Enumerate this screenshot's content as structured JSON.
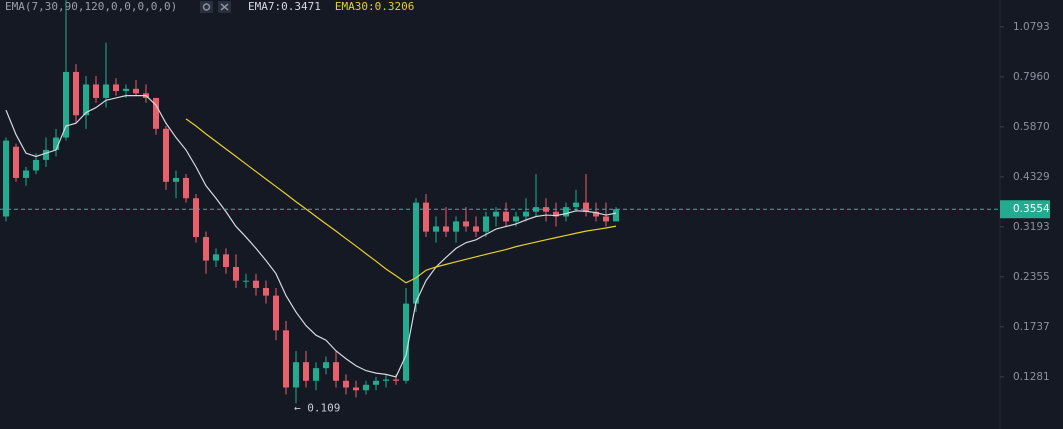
{
  "chart_data": {
    "type": "candlestick",
    "indicator": "EMA(7,30,90,120,0,0,0,0,0)",
    "log_scale": true,
    "up_color": "#22ab8e",
    "down_color": "#e8606c",
    "open": [
      0.34,
      0.52,
      0.43,
      0.45,
      0.48,
      0.51,
      0.55,
      0.82,
      0.63,
      0.76,
      0.7,
      0.76,
      0.73,
      0.74,
      0.72,
      0.7,
      0.58,
      0.42,
      0.43,
      0.38,
      0.3,
      0.26,
      0.27,
      0.25,
      0.23,
      0.23,
      0.22,
      0.21,
      0.17,
      0.12,
      0.14,
      0.125,
      0.135,
      0.14,
      0.125,
      0.12,
      0.118,
      0.122,
      0.125,
      0.126,
      0.125,
      0.2,
      0.37,
      0.31,
      0.32,
      0.31,
      0.33,
      0.32,
      0.31,
      0.34,
      0.35,
      0.33,
      0.34,
      0.35,
      0.36,
      0.35,
      0.34,
      0.36,
      0.37,
      0.35,
      0.34,
      0.33
    ],
    "high": [
      0.55,
      0.53,
      0.46,
      0.5,
      0.55,
      0.58,
      1.27,
      0.86,
      0.8,
      0.8,
      0.98,
      0.79,
      0.76,
      0.78,
      0.76,
      0.7,
      0.59,
      0.45,
      0.44,
      0.39,
      0.31,
      0.28,
      0.28,
      0.27,
      0.24,
      0.24,
      0.23,
      0.22,
      0.18,
      0.15,
      0.15,
      0.14,
      0.145,
      0.15,
      0.13,
      0.125,
      0.125,
      0.128,
      0.13,
      0.13,
      0.22,
      0.38,
      0.39,
      0.34,
      0.36,
      0.34,
      0.36,
      0.34,
      0.35,
      0.36,
      0.37,
      0.35,
      0.38,
      0.44,
      0.38,
      0.37,
      0.37,
      0.4,
      0.44,
      0.37,
      0.37,
      0.36
    ],
    "low": [
      0.33,
      0.42,
      0.41,
      0.44,
      0.46,
      0.49,
      0.54,
      0.6,
      0.58,
      0.68,
      0.66,
      0.71,
      0.7,
      0.71,
      0.68,
      0.56,
      0.4,
      0.38,
      0.37,
      0.29,
      0.24,
      0.25,
      0.24,
      0.22,
      0.22,
      0.21,
      0.2,
      0.16,
      0.115,
      0.109,
      0.12,
      0.118,
      0.13,
      0.12,
      0.115,
      0.113,
      0.115,
      0.118,
      0.12,
      0.122,
      0.123,
      0.19,
      0.3,
      0.29,
      0.3,
      0.29,
      0.31,
      0.3,
      0.3,
      0.32,
      0.32,
      0.32,
      0.33,
      0.34,
      0.33,
      0.32,
      0.33,
      0.35,
      0.34,
      0.33,
      0.32,
      0.33
    ],
    "close": [
      0.54,
      0.43,
      0.45,
      0.48,
      0.51,
      0.55,
      0.82,
      0.63,
      0.76,
      0.7,
      0.76,
      0.73,
      0.74,
      0.72,
      0.7,
      0.58,
      0.42,
      0.43,
      0.38,
      0.3,
      0.26,
      0.27,
      0.25,
      0.23,
      0.23,
      0.22,
      0.21,
      0.17,
      0.12,
      0.14,
      0.125,
      0.135,
      0.14,
      0.125,
      0.12,
      0.118,
      0.122,
      0.125,
      0.126,
      0.125,
      0.2,
      0.37,
      0.31,
      0.32,
      0.31,
      0.33,
      0.32,
      0.31,
      0.34,
      0.35,
      0.33,
      0.34,
      0.35,
      0.36,
      0.35,
      0.34,
      0.36,
      0.37,
      0.35,
      0.34,
      0.33,
      0.3554
    ],
    "series": [
      {
        "name": "EMA7:0.3471",
        "color": "#d6d8de",
        "values": [
          0.65,
          0.56,
          0.5,
          0.49,
          0.5,
          0.51,
          0.59,
          0.6,
          0.64,
          0.66,
          0.69,
          0.7,
          0.71,
          0.71,
          0.71,
          0.67,
          0.6,
          0.55,
          0.51,
          0.46,
          0.41,
          0.38,
          0.35,
          0.32,
          0.3,
          0.28,
          0.26,
          0.24,
          0.21,
          0.19,
          0.175,
          0.165,
          0.16,
          0.15,
          0.143,
          0.137,
          0.133,
          0.131,
          0.13,
          0.128,
          0.146,
          0.202,
          0.23,
          0.25,
          0.265,
          0.28,
          0.29,
          0.295,
          0.305,
          0.315,
          0.32,
          0.325,
          0.333,
          0.34,
          0.343,
          0.342,
          0.346,
          0.352,
          0.351,
          0.348,
          0.343,
          0.3471
        ]
      },
      {
        "name": "EMA30:0.3206",
        "color": "#e8cf2c",
        "values": [
          null,
          null,
          null,
          null,
          null,
          null,
          null,
          null,
          null,
          null,
          null,
          null,
          null,
          null,
          null,
          null,
          null,
          null,
          0.616,
          0.59,
          0.562,
          0.537,
          0.513,
          0.49,
          0.468,
          0.447,
          0.427,
          0.408,
          0.39,
          0.372,
          0.356,
          0.34,
          0.325,
          0.311,
          0.297,
          0.284,
          0.271,
          0.259,
          0.247,
          0.237,
          0.227,
          0.234,
          0.245,
          0.25,
          0.254,
          0.258,
          0.262,
          0.266,
          0.27,
          0.274,
          0.278,
          0.283,
          0.287,
          0.291,
          0.295,
          0.299,
          0.303,
          0.307,
          0.311,
          0.314,
          0.317,
          0.3206
        ]
      }
    ],
    "last_price": 0.3554,
    "annotations": [
      {
        "text": "← 0.109"
      }
    ],
    "ylim": [
      0.0932,
      1.271
    ],
    "yticks": [
      1.0793,
      {
        "value": 0.796,
        "label": "0.7960"
      },
      {
        "value": 0.587,
        "label": "0.5870"
      },
      0.4329,
      0.3193,
      0.2355,
      0.1737,
      0.1281
    ]
  }
}
